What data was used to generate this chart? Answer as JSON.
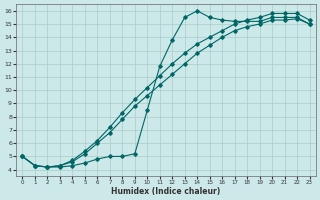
{
  "xlabel": "Humidex (Indice chaleur)",
  "bg_color": "#cce8e8",
  "grid_color": "#aacccc",
  "line_color": "#006666",
  "xlim": [
    -0.5,
    23.5
  ],
  "ylim": [
    3.5,
    16.5
  ],
  "xticks": [
    0,
    1,
    2,
    3,
    4,
    5,
    6,
    7,
    8,
    9,
    10,
    11,
    12,
    13,
    14,
    15,
    16,
    17,
    18,
    19,
    20,
    21,
    22,
    23
  ],
  "yticks": [
    4,
    5,
    6,
    7,
    8,
    9,
    10,
    11,
    12,
    13,
    14,
    15,
    16
  ],
  "line1_x": [
    0,
    1,
    2,
    3,
    4,
    5,
    6,
    7,
    8,
    9,
    10,
    11,
    12,
    13,
    14,
    15,
    16,
    17,
    18,
    19,
    20,
    21,
    22,
    23
  ],
  "line1_y": [
    5.0,
    4.3,
    4.2,
    4.2,
    4.3,
    4.5,
    4.8,
    5.0,
    5.0,
    5.2,
    8.5,
    11.8,
    13.8,
    15.5,
    16.0,
    15.5,
    15.3,
    15.2,
    15.2,
    15.2,
    15.5,
    15.5,
    15.5,
    15.0
  ],
  "line2_x": [
    0,
    1,
    2,
    3,
    4,
    5,
    6,
    7,
    8,
    9,
    10,
    11,
    12,
    13,
    14,
    15,
    16,
    17,
    18,
    19,
    20,
    21,
    22,
    23
  ],
  "line2_y": [
    5.0,
    4.3,
    4.2,
    4.3,
    4.6,
    5.2,
    6.0,
    6.8,
    7.8,
    8.8,
    9.6,
    10.4,
    11.2,
    12.0,
    12.8,
    13.4,
    14.0,
    14.5,
    14.8,
    15.0,
    15.3,
    15.3,
    15.4,
    15.0
  ],
  "line3_x": [
    0,
    1,
    2,
    3,
    4,
    5,
    6,
    7,
    8,
    9,
    10,
    11,
    12,
    13,
    14,
    15,
    16,
    17,
    18,
    19,
    20,
    21,
    22,
    23
  ],
  "line3_y": [
    5.0,
    4.3,
    4.2,
    4.3,
    4.7,
    5.4,
    6.2,
    7.2,
    8.3,
    9.3,
    10.2,
    11.1,
    12.0,
    12.8,
    13.5,
    14.0,
    14.5,
    15.0,
    15.3,
    15.5,
    15.8,
    15.8,
    15.8,
    15.3
  ]
}
